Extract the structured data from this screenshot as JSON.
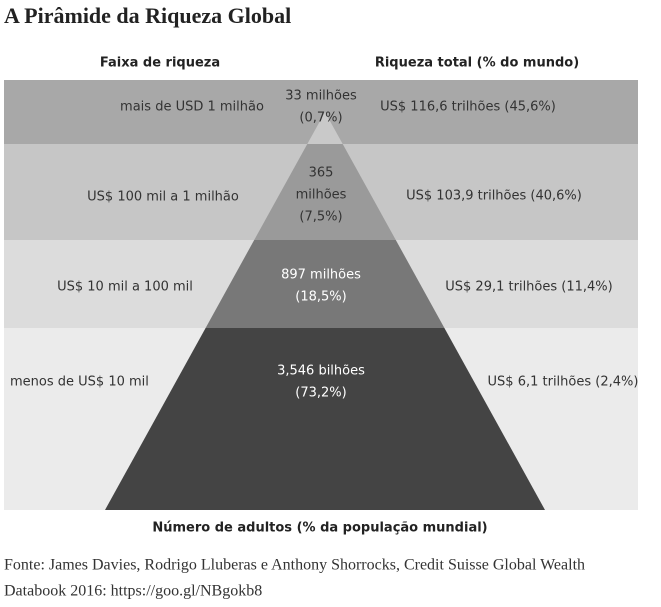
{
  "title": "A Pirâmide da Riqueza Global",
  "headers": {
    "range": "Faixa de riqueza",
    "wealth": "Riqueza total (% do mundo)",
    "adults": "Número de adultos (% da população mundial)"
  },
  "rows": [
    {
      "range": "mais de USD 1 milhão",
      "population": [
        "33 milhões",
        "(0,7%)"
      ],
      "wealth": "US$ 116,6 trilhões (45,6%)"
    },
    {
      "range": "US$ 100 mil a 1 milhão",
      "population": [
        "365",
        "milhões",
        "(7,5%)"
      ],
      "wealth": "US$ 103,9 trilhões (40,6%)"
    },
    {
      "range": "US$ 10 mil a 100 mil",
      "population": [
        "897 milhões",
        "(18,5%)"
      ],
      "wealth": "US$ 29,1 trilhões (11,4%)"
    },
    {
      "range": "menos de US$ 10 mil",
      "population": [
        "3,546 bilhões",
        "(73,2%)"
      ],
      "wealth": "US$ 6,1 trilhões  (2,4%)"
    }
  ],
  "source": [
    "Fonte: James Davies, Rodrigo Lluberas e Anthony Shorrocks, Credit Suisse Global Wealth",
    "Databook 2016: https://goo.gl/NBgokb8"
  ]
}
